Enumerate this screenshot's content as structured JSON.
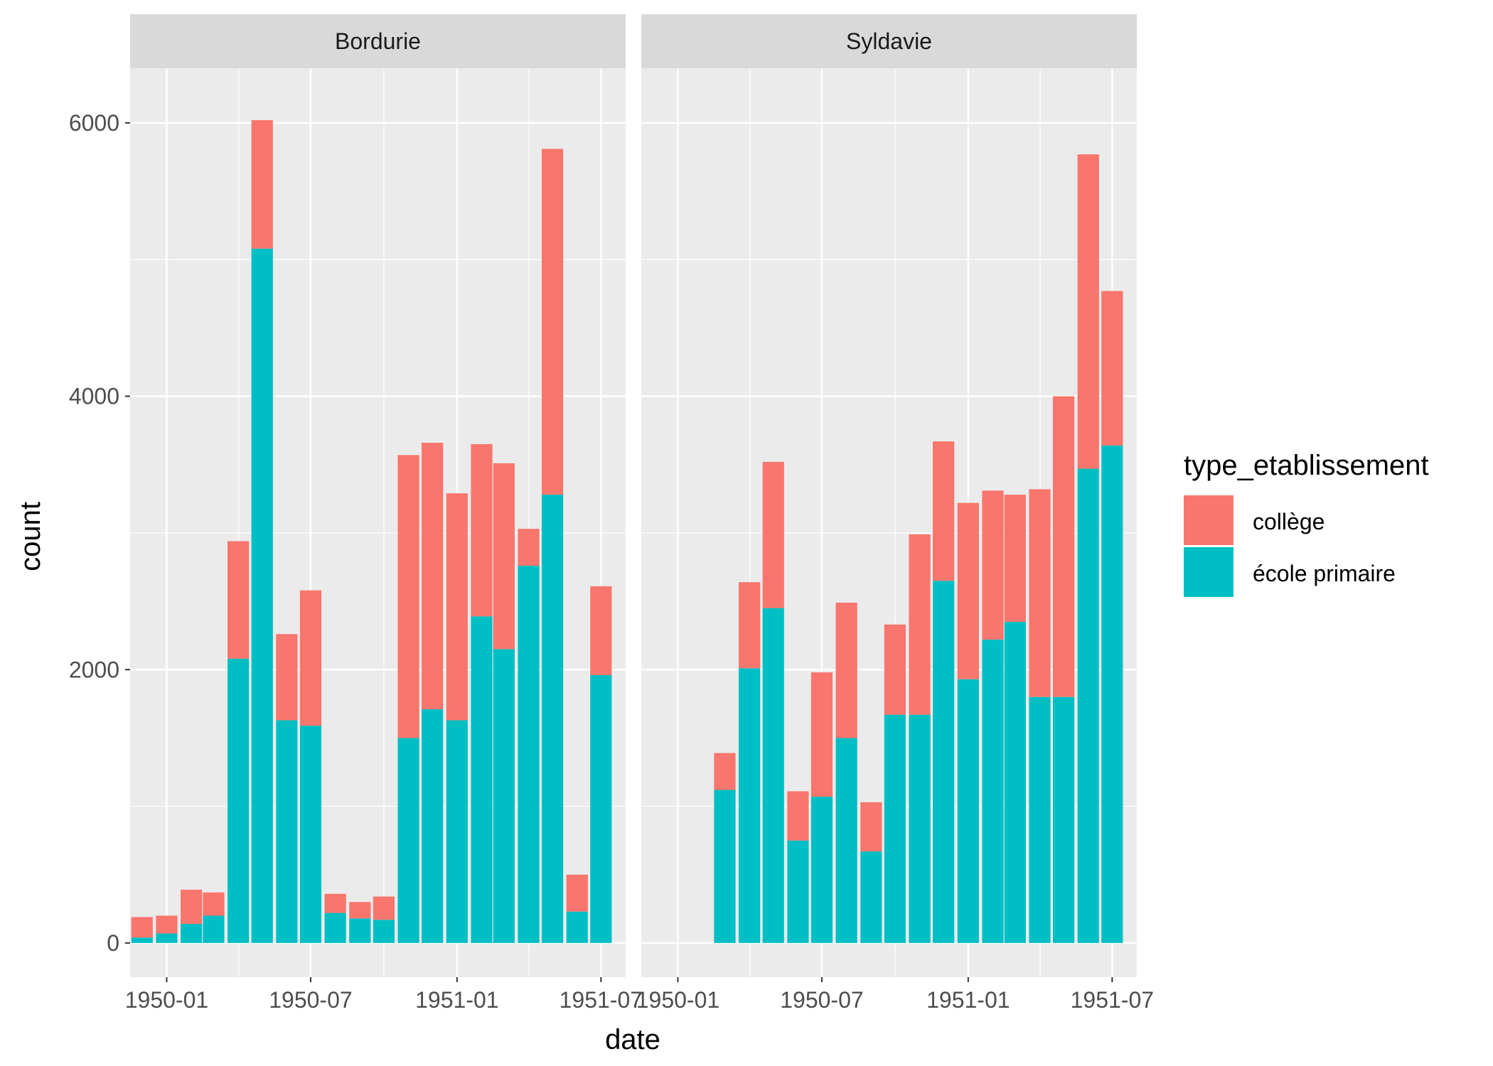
{
  "chart_data": {
    "type": "bar",
    "stacked": true,
    "xlabel": "date",
    "ylabel": "count",
    "ylim": [
      -250,
      6400
    ],
    "yticks": [
      0,
      2000,
      4000,
      6000
    ],
    "xlim": [
      "1949-11-16",
      "1951-08-01"
    ],
    "xticks": [
      "1950-01",
      "1950-07",
      "1951-01",
      "1951-07"
    ],
    "legend": {
      "title": "type_etablissement",
      "position": "right",
      "entries": [
        {
          "label": "collège",
          "color": "#F8766D"
        },
        {
          "label": "école primaire",
          "color": "#00BFC4"
        }
      ]
    },
    "colors": {
      "panel_bg": "#EBEBEB",
      "grid": "#FFFFFF",
      "strip_bg": "#D9D9D9",
      "college": "#F8766D",
      "ecole": "#00BFC4"
    },
    "categories": [
      "1949-12",
      "1950-01",
      "1950-02",
      "1950-03",
      "1950-04",
      "1950-05",
      "1950-06",
      "1950-07",
      "1950-08",
      "1950-09",
      "1950-10",
      "1950-11",
      "1950-12",
      "1951-01",
      "1951-02",
      "1951-03",
      "1951-04",
      "1951-05",
      "1951-06",
      "1951-07"
    ],
    "panels": [
      {
        "name": "Bordurie",
        "series": [
          {
            "name": "école primaire",
            "values": [
              40,
              70,
              140,
              200,
              2080,
              5080,
              1630,
              1590,
              220,
              180,
              170,
              1500,
              1710,
              1630,
              2390,
              2150,
              2760,
              3280,
              230,
              1960
            ]
          },
          {
            "name": "collège",
            "values": [
              150,
              130,
              250,
              170,
              860,
              940,
              630,
              990,
              140,
              120,
              170,
              2070,
              1950,
              1660,
              1260,
              1360,
              270,
              2530,
              270,
              650
            ]
          }
        ]
      },
      {
        "name": "Syldavie",
        "series": [
          {
            "name": "école primaire",
            "values": [
              0,
              0,
              0,
              1120,
              2010,
              2450,
              750,
              1070,
              1500,
              670,
              1670,
              1670,
              2650,
              1930,
              2220,
              2350,
              1800,
              1800,
              3470,
              3640
            ]
          },
          {
            "name": "collège",
            "values": [
              0,
              0,
              0,
              270,
              630,
              1070,
              360,
              910,
              990,
              360,
              660,
              1320,
              1020,
              1290,
              1090,
              930,
              1520,
              2200,
              2300,
              1130
            ]
          }
        ]
      }
    ]
  }
}
